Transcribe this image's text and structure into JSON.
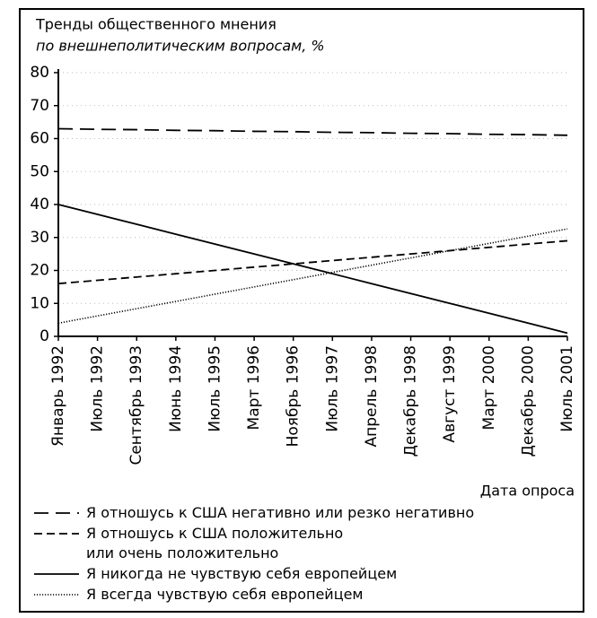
{
  "chart_data": {
    "type": "line",
    "title": "Тренды общественного мнения",
    "subtitle": "по внешнеполитическим вопросам, %",
    "x_label": "Дата опроса",
    "categories": [
      "Январь 1992",
      "Июль 1992",
      "Сентябрь 1993",
      "Июнь 1994",
      "Июль 1995",
      "Март 1996",
      "Ноябрь 1996",
      "Июль 1997",
      "Апрель 1998",
      "Декабрь 1998",
      "Август 1999",
      "Март 2000",
      "Декабрь 2000",
      "Июль 2001"
    ],
    "series": [
      {
        "name": "Я отношусь к США негативно или резко негативно",
        "color": "#000000",
        "line_style": "long-dash",
        "values": [
          63,
          62.8,
          62.7,
          62.5,
          62.4,
          62.2,
          62.1,
          61.9,
          61.8,
          61.6,
          61.5,
          61.3,
          61.2,
          61
        ]
      },
      {
        "name": "Я отношусь к США положительно\nили очень положительно",
        "color": "#000000",
        "line_style": "dash",
        "values": [
          16,
          17,
          18,
          19,
          20,
          21,
          22,
          23,
          24,
          25,
          26,
          27,
          28,
          29
        ]
      },
      {
        "name": "Я никогда не чувствую себя европейцем",
        "color": "#000000",
        "line_style": "solid",
        "values": [
          40,
          37,
          34,
          31,
          28,
          25,
          22,
          19,
          16,
          13,
          10,
          7,
          4,
          1
        ]
      },
      {
        "name": "Я всегда чувствую себя европейцем",
        "color": "#000000",
        "line_style": "dotted",
        "values": [
          4,
          6.2,
          8.4,
          10.6,
          12.8,
          15,
          17.2,
          19.4,
          21.6,
          23.8,
          26,
          28.2,
          30.4,
          32.6
        ]
      }
    ],
    "ylim": [
      0,
      80
    ],
    "yticks": [
      0,
      10,
      20,
      30,
      40,
      50,
      60,
      70,
      80
    ],
    "grid": true
  }
}
